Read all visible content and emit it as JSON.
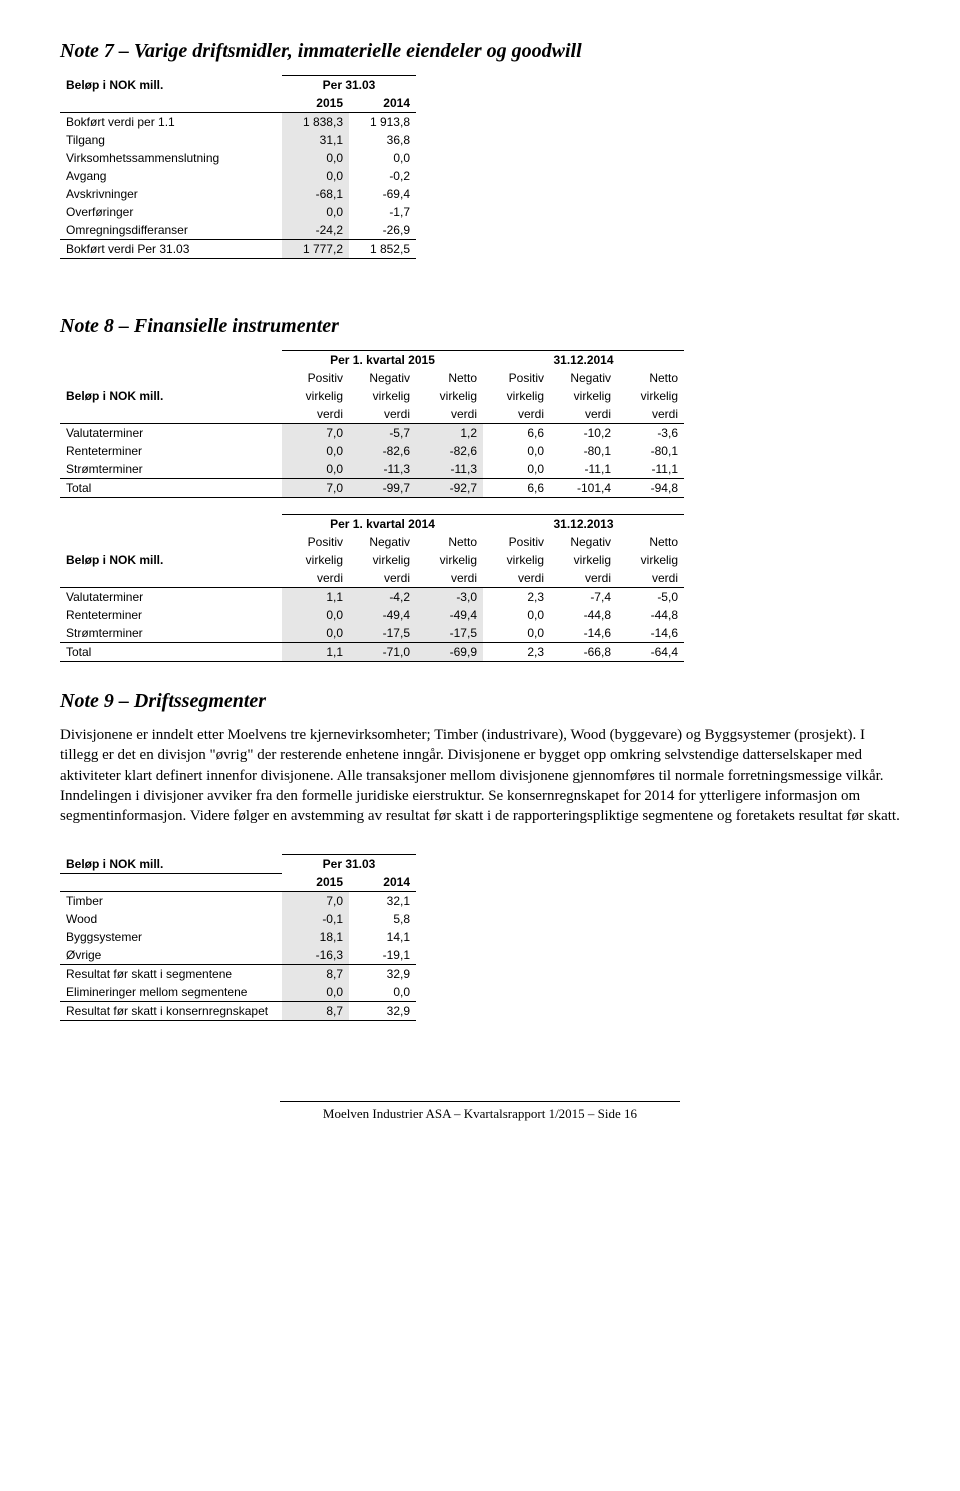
{
  "note7": {
    "title": "Note 7 – Varige driftsmidler, immaterielle eiendeler og goodwill",
    "unit_label": "Beløp i NOK mill.",
    "period_label": "Per 31.03",
    "year1": "2015",
    "year2": "2014",
    "rows": [
      {
        "label": "Bokført verdi per 1.1",
        "v1": "1 838,3",
        "v2": "1 913,8"
      },
      {
        "label": "Tilgang",
        "v1": "31,1",
        "v2": "36,8"
      },
      {
        "label": "Virksomhetssammenslutning",
        "v1": "0,0",
        "v2": "0,0"
      },
      {
        "label": "Avgang",
        "v1": "0,0",
        "v2": "-0,2"
      },
      {
        "label": "Avskrivninger",
        "v1": "-68,1",
        "v2": "-69,4"
      },
      {
        "label": "Overføringer",
        "v1": "0,0",
        "v2": "-1,7"
      },
      {
        "label": "Omregningsdifferanser",
        "v1": "-24,2",
        "v2": "-26,9"
      }
    ],
    "total": {
      "label": "Bokført verdi Per 31.03",
      "v1": "1 777,2",
      "v2": "1 852,5"
    }
  },
  "note8": {
    "title": "Note 8 – Finansielle instrumenter",
    "unit_label": "Beløp i NOK mill.",
    "header_a": {
      "period_left": "Per 1. kvartal 2015",
      "period_right": "31.12.2014",
      "cols": [
        "Positiv virkelig verdi",
        "Negativ virkelig verdi",
        "Netto virkelig verdi",
        "Positiv virkelig verdi",
        "Negativ virkelig verdi",
        "Netto virkelig verdi"
      ]
    },
    "rows_a": [
      {
        "label": "Valutaterminer",
        "v": [
          "7,0",
          "-5,7",
          "1,2",
          "6,6",
          "-10,2",
          "-3,6"
        ]
      },
      {
        "label": "Renteterminer",
        "v": [
          "0,0",
          "-82,6",
          "-82,6",
          "0,0",
          "-80,1",
          "-80,1"
        ]
      },
      {
        "label": "Strømterminer",
        "v": [
          "0,0",
          "-11,3",
          "-11,3",
          "0,0",
          "-11,1",
          "-11,1"
        ]
      }
    ],
    "total_a": {
      "label": "Total",
      "v": [
        "7,0",
        "-99,7",
        "-92,7",
        "6,6",
        "-101,4",
        "-94,8"
      ]
    },
    "header_b": {
      "period_left": "Per 1. kvartal 2014",
      "period_right": "31.12.2013"
    },
    "rows_b": [
      {
        "label": "Valutaterminer",
        "v": [
          "1,1",
          "-4,2",
          "-3,0",
          "2,3",
          "-7,4",
          "-5,0"
        ]
      },
      {
        "label": "Renteterminer",
        "v": [
          "0,0",
          "-49,4",
          "-49,4",
          "0,0",
          "-44,8",
          "-44,8"
        ]
      },
      {
        "label": "Strømterminer",
        "v": [
          "0,0",
          "-17,5",
          "-17,5",
          "0,0",
          "-14,6",
          "-14,6"
        ]
      }
    ],
    "total_b": {
      "label": "Total",
      "v": [
        "1,1",
        "-71,0",
        "-69,9",
        "2,3",
        "-66,8",
        "-64,4"
      ]
    }
  },
  "note9": {
    "title": "Note 9 – Driftssegmenter",
    "body": "Divisjonene er inndelt etter Moelvens tre kjernevirksomheter; Timber (industrivare), Wood (byggevare) og Byggsystemer (prosjekt). I tillegg er det en divisjon \"øvrig\" der resterende enhetene inngår. Divisjonene er bygget opp omkring selvstendige datterselskaper med aktiviteter klart definert innenfor divisjonene. Alle transaksjoner mellom divisjonene gjennomføres til normale forretningsmessige vilkår. Inndelingen i divisjoner avviker fra den formelle juridiske eierstruktur. Se konsernregnskapet for 2014 for ytterligere informasjon om segmentinformasjon. Videre følger en avstemming av resultat før skatt i de rapporteringspliktige segmentene og foretakets resultat før skatt.",
    "unit_label": "Beløp i NOK mill.",
    "period_label": "Per 31.03",
    "year1": "2015",
    "year2": "2014",
    "rows": [
      {
        "label": "Timber",
        "v1": "7,0",
        "v2": "32,1"
      },
      {
        "label": "Wood",
        "v1": "-0,1",
        "v2": "5,8"
      },
      {
        "label": "Byggsystemer",
        "v1": "18,1",
        "v2": "14,1"
      },
      {
        "label": "Øvrige",
        "v1": "-16,3",
        "v2": "-19,1"
      }
    ],
    "subtotal": {
      "label": "Resultat før skatt i segmentene",
      "v1": "8,7",
      "v2": "32,9"
    },
    "elim": {
      "label": "Elimineringer mellom segmentene",
      "v1": "0,0",
      "v2": "0,0"
    },
    "total": {
      "label": "Resultat før skatt i konsernregnskapet",
      "v1": "8,7",
      "v2": "32,9"
    }
  },
  "footer": "Moelven Industrier ASA – Kvartalsrapport 1/2015 – Side 16",
  "col_heads": {
    "pos": "Positiv",
    "neg": "Negativ",
    "net": "Netto",
    "virk": "virkelig",
    "verdi": "verdi"
  }
}
